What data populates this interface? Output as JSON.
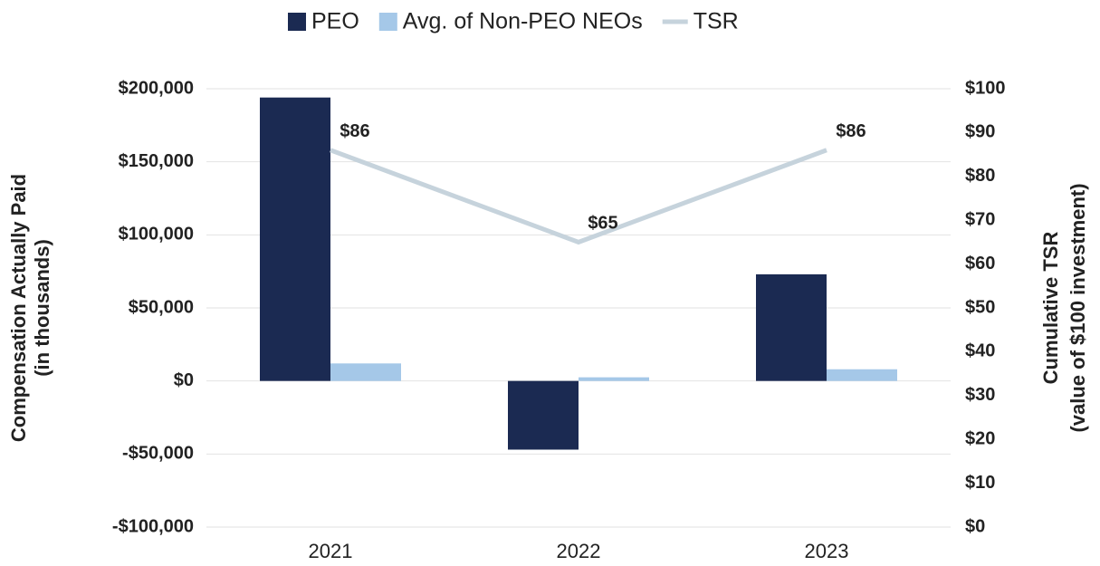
{
  "chart_data": {
    "type": "bar",
    "categories": [
      "2021",
      "2022",
      "2023"
    ],
    "series": [
      {
        "name": "PEO",
        "color": "#1b2a52",
        "values": [
          194000,
          -47000,
          73000
        ]
      },
      {
        "name": "Avg. of Non-PEO NEOs",
        "color": "#a5c8e8",
        "values": [
          12000,
          2500,
          8000
        ]
      },
      {
        "name": "TSR",
        "type": "line",
        "axis": "y2",
        "color": "#c6d3dc",
        "values": [
          86,
          65,
          86
        ],
        "value_labels": [
          "$86",
          "$65",
          "$86"
        ]
      }
    ],
    "y_label": [
      "Compensation Actually Paid",
      "(in thousands)"
    ],
    "y2_label": [
      "Cumulative TSR",
      "(value of $100 investment)"
    ],
    "ylim": [
      -100000,
      200000
    ],
    "yticks": [
      {
        "value": -100000,
        "label": "-$100,000"
      },
      {
        "value": -50000,
        "label": "-$50,000"
      },
      {
        "value": 0,
        "label": "$0"
      },
      {
        "value": 50000,
        "label": "$50,000"
      },
      {
        "value": 100000,
        "label": "$100,000"
      },
      {
        "value": 150000,
        "label": "$150,000"
      },
      {
        "value": 200000,
        "label": "$200,000"
      }
    ],
    "y2lim": [
      0,
      100
    ],
    "y2ticks": [
      {
        "value": 0,
        "label": "$0"
      },
      {
        "value": 10,
        "label": "$10"
      },
      {
        "value": 20,
        "label": "$20"
      },
      {
        "value": 30,
        "label": "$30"
      },
      {
        "value": 40,
        "label": "$40"
      },
      {
        "value": 50,
        "label": "$50"
      },
      {
        "value": 60,
        "label": "$60"
      },
      {
        "value": 70,
        "label": "$70"
      },
      {
        "value": 80,
        "label": "$80"
      },
      {
        "value": 90,
        "label": "$90"
      },
      {
        "value": 100,
        "label": "$100"
      }
    ],
    "grid": true,
    "legend": "top"
  }
}
